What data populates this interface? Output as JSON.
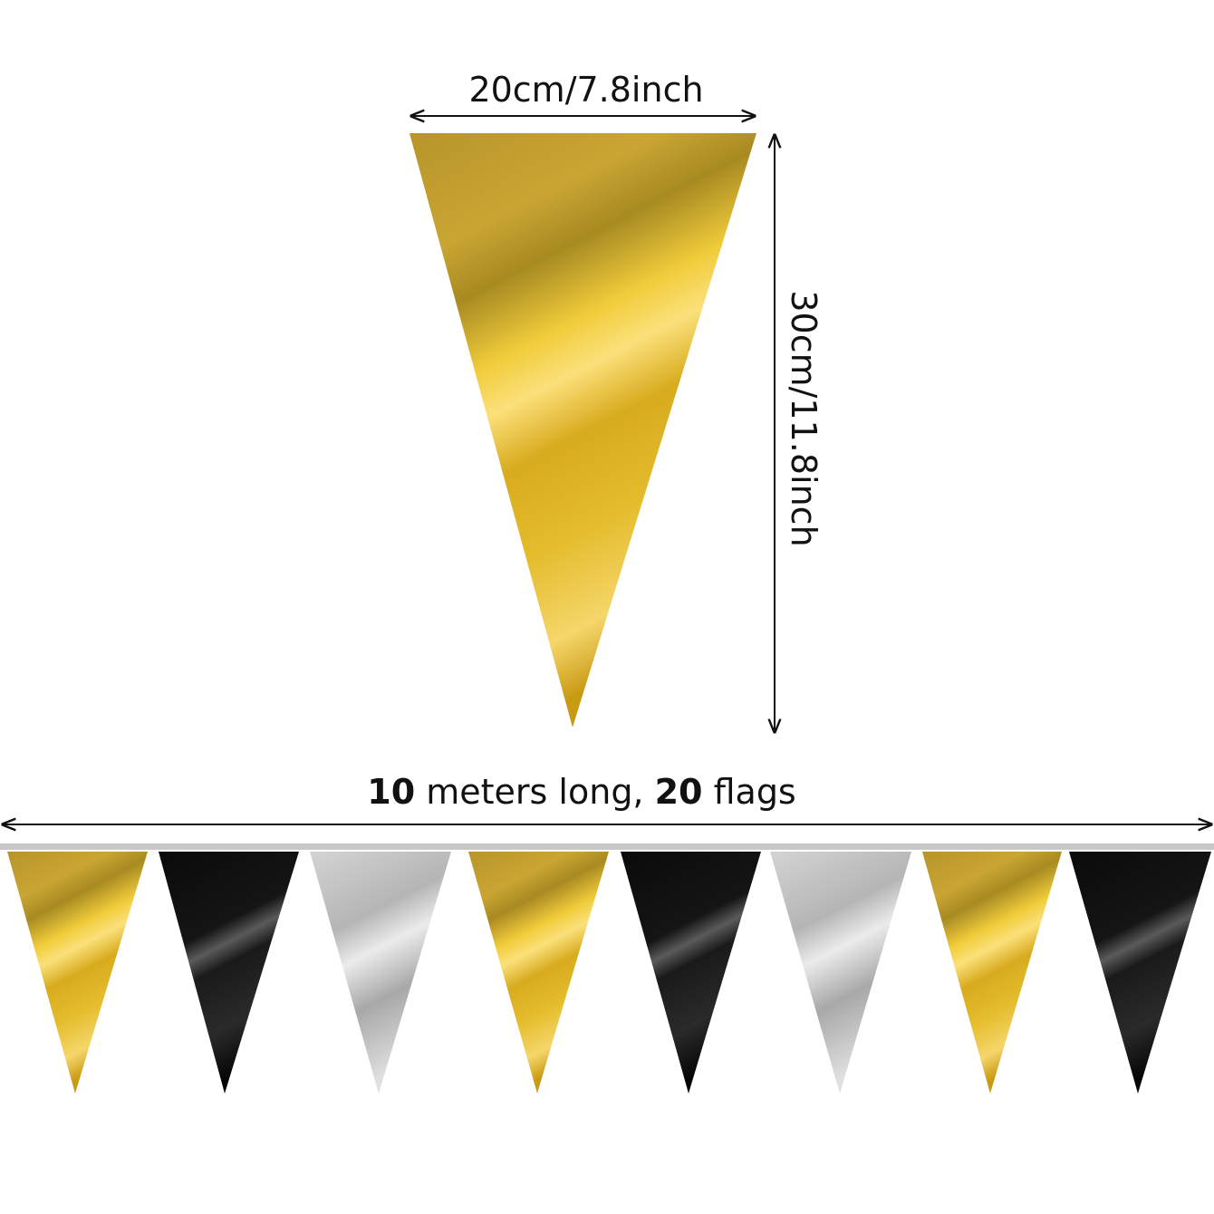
{
  "width_label": "20cm/7.8inch",
  "height_label": "30cm/11.8inch",
  "length_label": {
    "parts": [
      "10",
      "meters long,",
      "20",
      "flags"
    ]
  }
}
